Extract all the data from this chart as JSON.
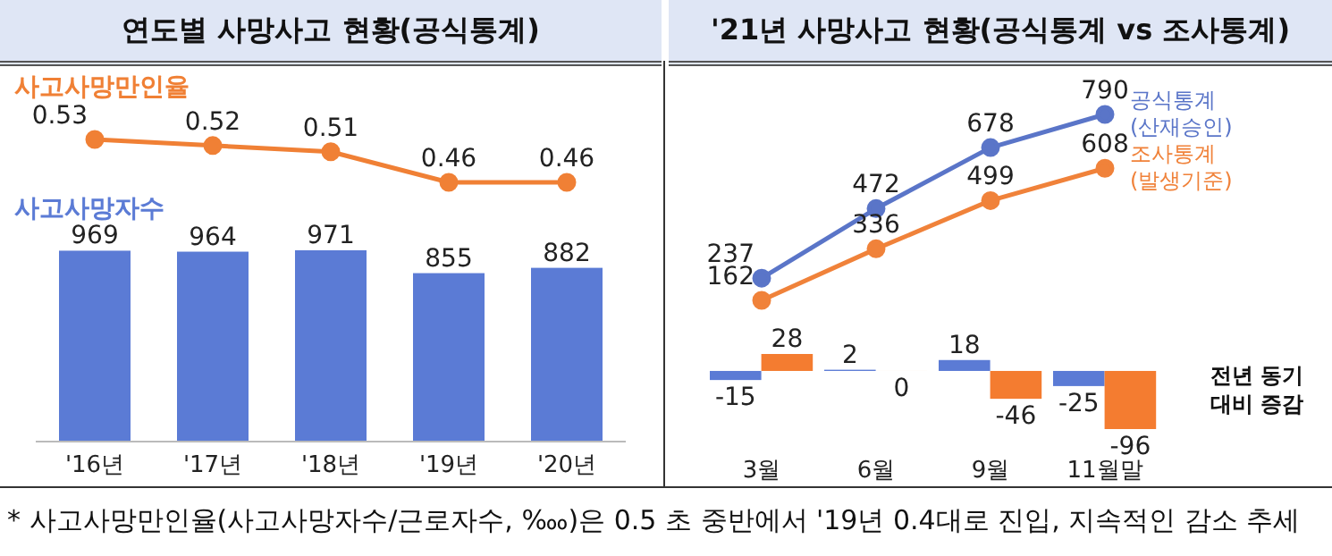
{
  "chart_data": [
    {
      "type": "line",
      "title": "연도별 사망사고 현황(공식통계)",
      "categories": [
        null,
        null,
        null,
        null,
        null
      ],
      "series": [
        {
          "name": "사고사망만인율",
          "color": "#f08035",
          "values": [
            0.53,
            0.52,
            0.51,
            0.46,
            0.46
          ]
        }
      ],
      "data_labels": true,
      "marker": "circle"
    },
    {
      "type": "bar",
      "categories": [
        "'16년",
        "'17년",
        "'18년",
        "'19년",
        "'20년"
      ],
      "series": [
        {
          "name": "사고사망자수",
          "color": "#5b7bd5",
          "values": [
            969,
            964,
            971,
            855,
            882
          ]
        }
      ],
      "data_labels": true,
      "annotations": [
        "* 사고사망만인율(사고사망자수/근로자수, ‱)은 0.5 초 중반에서 '19년 0.4대로 진입, 지속적인 감소 추세"
      ]
    },
    {
      "type": "line",
      "title": "'21년 사망사고 현황(공식통계 vs 조사통계)",
      "categories": [
        null,
        null,
        null,
        null
      ],
      "series": [
        {
          "name": "공식통계 (산재승인)",
          "color": "#5a75c8",
          "values": [
            237,
            472,
            678,
            790
          ]
        },
        {
          "name": "조사통계 (발생기준)",
          "color": "#f0823a",
          "values": [
            162,
            336,
            499,
            608
          ]
        }
      ],
      "data_labels": true,
      "marker": "circle"
    },
    {
      "type": "bar",
      "categories": [
        "3월",
        "6월",
        "9월",
        "11월말"
      ],
      "series": [
        {
          "color": "#5b7bd5",
          "values": [
            -15,
            2,
            18,
            -25
          ]
        },
        {
          "color": "#f47c30",
          "values": [
            28,
            0,
            -46,
            -96
          ]
        }
      ],
      "data_labels": true,
      "annotations": [
        "전년 동기 대비 증감"
      ]
    }
  ]
}
